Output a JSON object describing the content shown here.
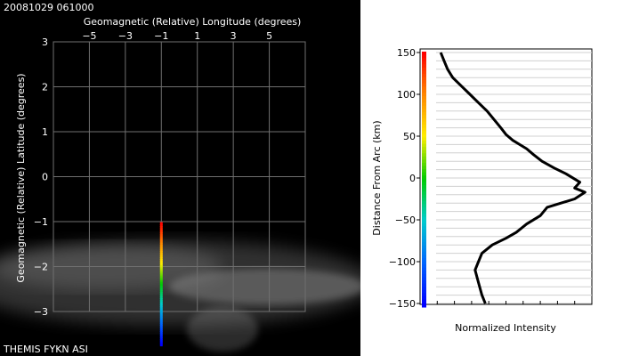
{
  "timestamp": "20081029 061000",
  "footer_label": "THEMIS FYKN ASI",
  "colors": {
    "left_background": "#000000",
    "grid": "#6f6f6f",
    "left_text": "#ffffff",
    "profile_line": "#000000"
  },
  "chart_data": [
    {
      "type": "scatter",
      "title": "Geomagnetic (Relative) Longitude (degrees)",
      "xlabel": "Geomagnetic (Relative) Longitude (degrees)",
      "ylabel": "Geomagnetic (Relative) Latitude (degrees)",
      "xlim": [
        -7,
        7
      ],
      "ylim": [
        -3,
        3
      ],
      "x_ticks": [
        -5,
        -3,
        -1,
        1,
        3,
        5
      ],
      "y_ticks": [
        3,
        2,
        1,
        0,
        -1,
        -2,
        -3
      ],
      "grid": true,
      "marker_line": {
        "x": -1,
        "y_top": -1.05,
        "y_bottom": -3.75,
        "colormap": [
          "#ff0000",
          "#ff8800",
          "#ffee00",
          "#00cc00",
          "#00cccc",
          "#0066ff",
          "#0000ff"
        ]
      }
    },
    {
      "type": "line",
      "xlabel": "Normalized Intensity",
      "ylabel": "Distance From Arc (km)",
      "xlim": [
        0,
        1
      ],
      "ylim": [
        -150,
        150
      ],
      "y_ticks": [
        150,
        100,
        50,
        0,
        -50,
        -100,
        -150
      ],
      "colorbar": [
        "#ff0000",
        "#ff8800",
        "#ffee00",
        "#00cc00",
        "#00cccc",
        "#0066ff",
        "#0000ff"
      ],
      "series": [
        {
          "points": [
            [
              0.12,
              150
            ],
            [
              0.14,
              140
            ],
            [
              0.16,
              130
            ],
            [
              0.19,
              120
            ],
            [
              0.24,
              110
            ],
            [
              0.29,
              100
            ],
            [
              0.34,
              90
            ],
            [
              0.39,
              80
            ],
            [
              0.43,
              70
            ],
            [
              0.47,
              60
            ],
            [
              0.5,
              52
            ],
            [
              0.54,
              45
            ],
            [
              0.58,
              40
            ],
            [
              0.62,
              35
            ],
            [
              0.66,
              28
            ],
            [
              0.71,
              20
            ],
            [
              0.78,
              12
            ],
            [
              0.85,
              5
            ],
            [
              0.93,
              -5
            ],
            [
              0.9,
              -12
            ],
            [
              0.96,
              -17
            ],
            [
              0.9,
              -25
            ],
            [
              0.82,
              -30
            ],
            [
              0.74,
              -35
            ],
            [
              0.7,
              -45
            ],
            [
              0.62,
              -55
            ],
            [
              0.56,
              -65
            ],
            [
              0.5,
              -72
            ],
            [
              0.42,
              -80
            ],
            [
              0.36,
              -90
            ],
            [
              0.34,
              -100
            ],
            [
              0.32,
              -110
            ],
            [
              0.34,
              -125
            ],
            [
              0.36,
              -140
            ],
            [
              0.38,
              -150
            ]
          ]
        }
      ]
    }
  ]
}
